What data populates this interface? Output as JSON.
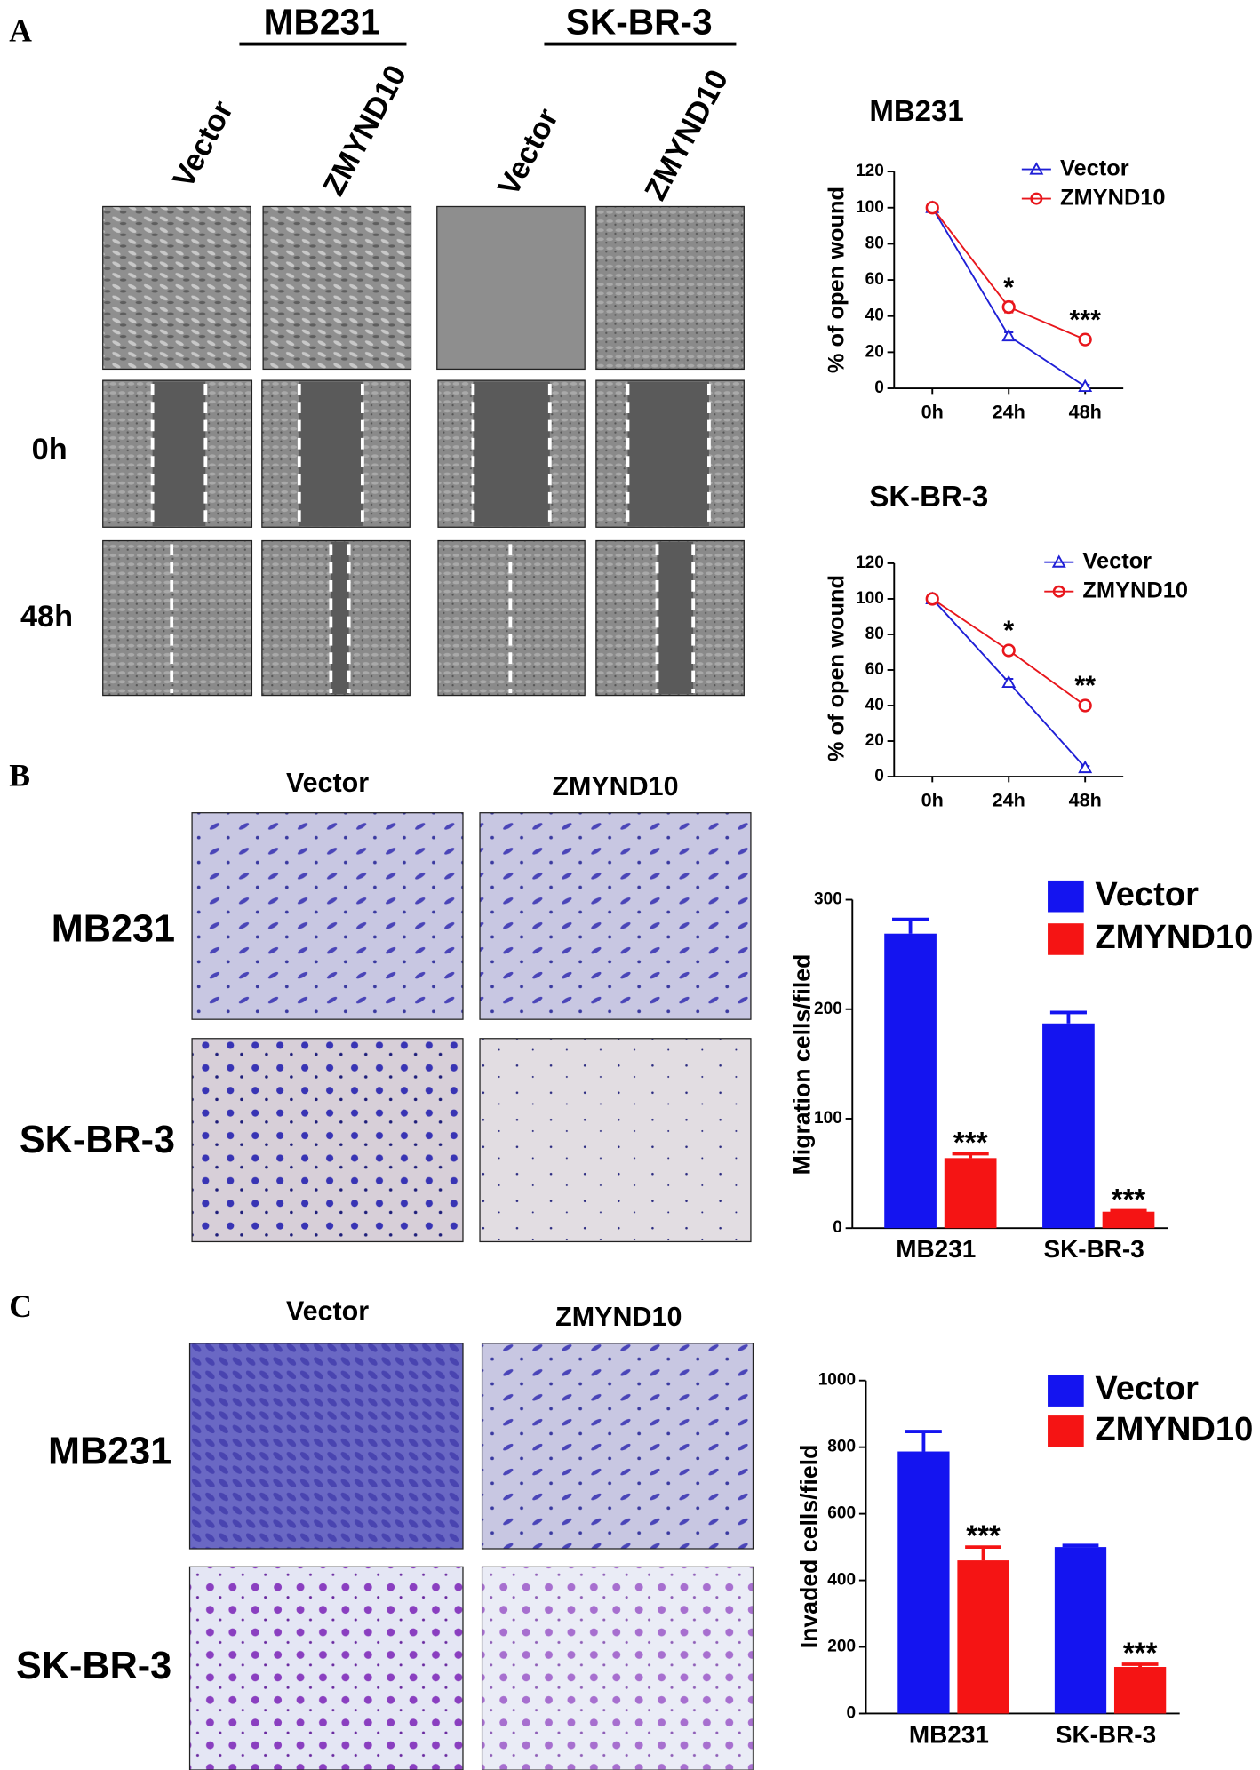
{
  "panels": {
    "A": {
      "label": "A",
      "cell_lines": [
        "MB231",
        "SK-BR-3"
      ],
      "conditions": [
        "Vector",
        "ZMYND10",
        "Vector",
        "ZMYND10"
      ],
      "times": [
        "0h",
        "48h"
      ]
    },
    "B": {
      "label": "B",
      "columns": [
        "Vector",
        "ZMYND10"
      ],
      "rows": [
        "MB231",
        "SK-BR-3"
      ]
    },
    "C": {
      "label": "C",
      "columns": [
        "Vector",
        "ZMYND10"
      ],
      "rows": [
        "MB231",
        "SK-BR-3"
      ]
    }
  },
  "chart_data": [
    {
      "type": "line",
      "title": "MB231",
      "y_label": "% of open wound",
      "categories": [
        "0h",
        "24h",
        "48h"
      ],
      "ylim": [
        0,
        120
      ],
      "yticks": [
        0,
        20,
        40,
        60,
        80,
        100,
        120
      ],
      "series": [
        {
          "name": "Vector",
          "color": "#1f1fd6",
          "marker": "triangle",
          "values": [
            100,
            29,
            1
          ],
          "errors": [
            1,
            2,
            1
          ]
        },
        {
          "name": "ZMYND10",
          "color": "#e8161c",
          "marker": "circle",
          "values": [
            100,
            45,
            27
          ],
          "errors": [
            1,
            3,
            2
          ],
          "annotations": [
            null,
            "*",
            "***"
          ]
        }
      ]
    },
    {
      "type": "line",
      "title": "SK-BR-3",
      "y_label": "% of open wound",
      "categories": [
        "0h",
        "24h",
        "48h"
      ],
      "ylim": [
        0,
        120
      ],
      "yticks": [
        0,
        20,
        40,
        60,
        80,
        100,
        120
      ],
      "series": [
        {
          "name": "Vector",
          "color": "#1f1fd6",
          "marker": "triangle",
          "values": [
            100,
            53,
            5
          ],
          "errors": [
            1,
            2,
            1
          ]
        },
        {
          "name": "ZMYND10",
          "color": "#e8161c",
          "marker": "circle",
          "values": [
            100,
            71,
            40
          ],
          "errors": [
            1,
            2,
            2
          ],
          "annotations": [
            null,
            "*",
            "**"
          ]
        }
      ]
    },
    {
      "type": "bar",
      "y_label": "Migration cells/filed",
      "categories": [
        "MB231",
        "SK-BR-3"
      ],
      "ylim": [
        0,
        300
      ],
      "yticks": [
        0,
        100,
        200,
        300
      ],
      "series": [
        {
          "name": "Vector",
          "color": "#1414f0",
          "values": [
            269,
            187
          ],
          "errors": [
            13,
            10
          ]
        },
        {
          "name": "ZMYND10",
          "color": "#f51414",
          "values": [
            64,
            15
          ],
          "errors": [
            4,
            1
          ],
          "annotations": [
            "***",
            "***"
          ]
        }
      ]
    },
    {
      "type": "bar",
      "y_label": "Invaded cells/field",
      "categories": [
        "MB231",
        "SK-BR-3"
      ],
      "ylim": [
        0,
        1000
      ],
      "yticks": [
        0,
        200,
        400,
        600,
        800,
        1000
      ],
      "series": [
        {
          "name": "Vector",
          "color": "#1414f0",
          "values": [
            787,
            500
          ],
          "errors": [
            60,
            5
          ]
        },
        {
          "name": "ZMYND10",
          "color": "#f51414",
          "values": [
            460,
            140
          ],
          "errors": [
            40,
            8
          ],
          "annotations": [
            "***",
            "***"
          ]
        }
      ]
    }
  ]
}
